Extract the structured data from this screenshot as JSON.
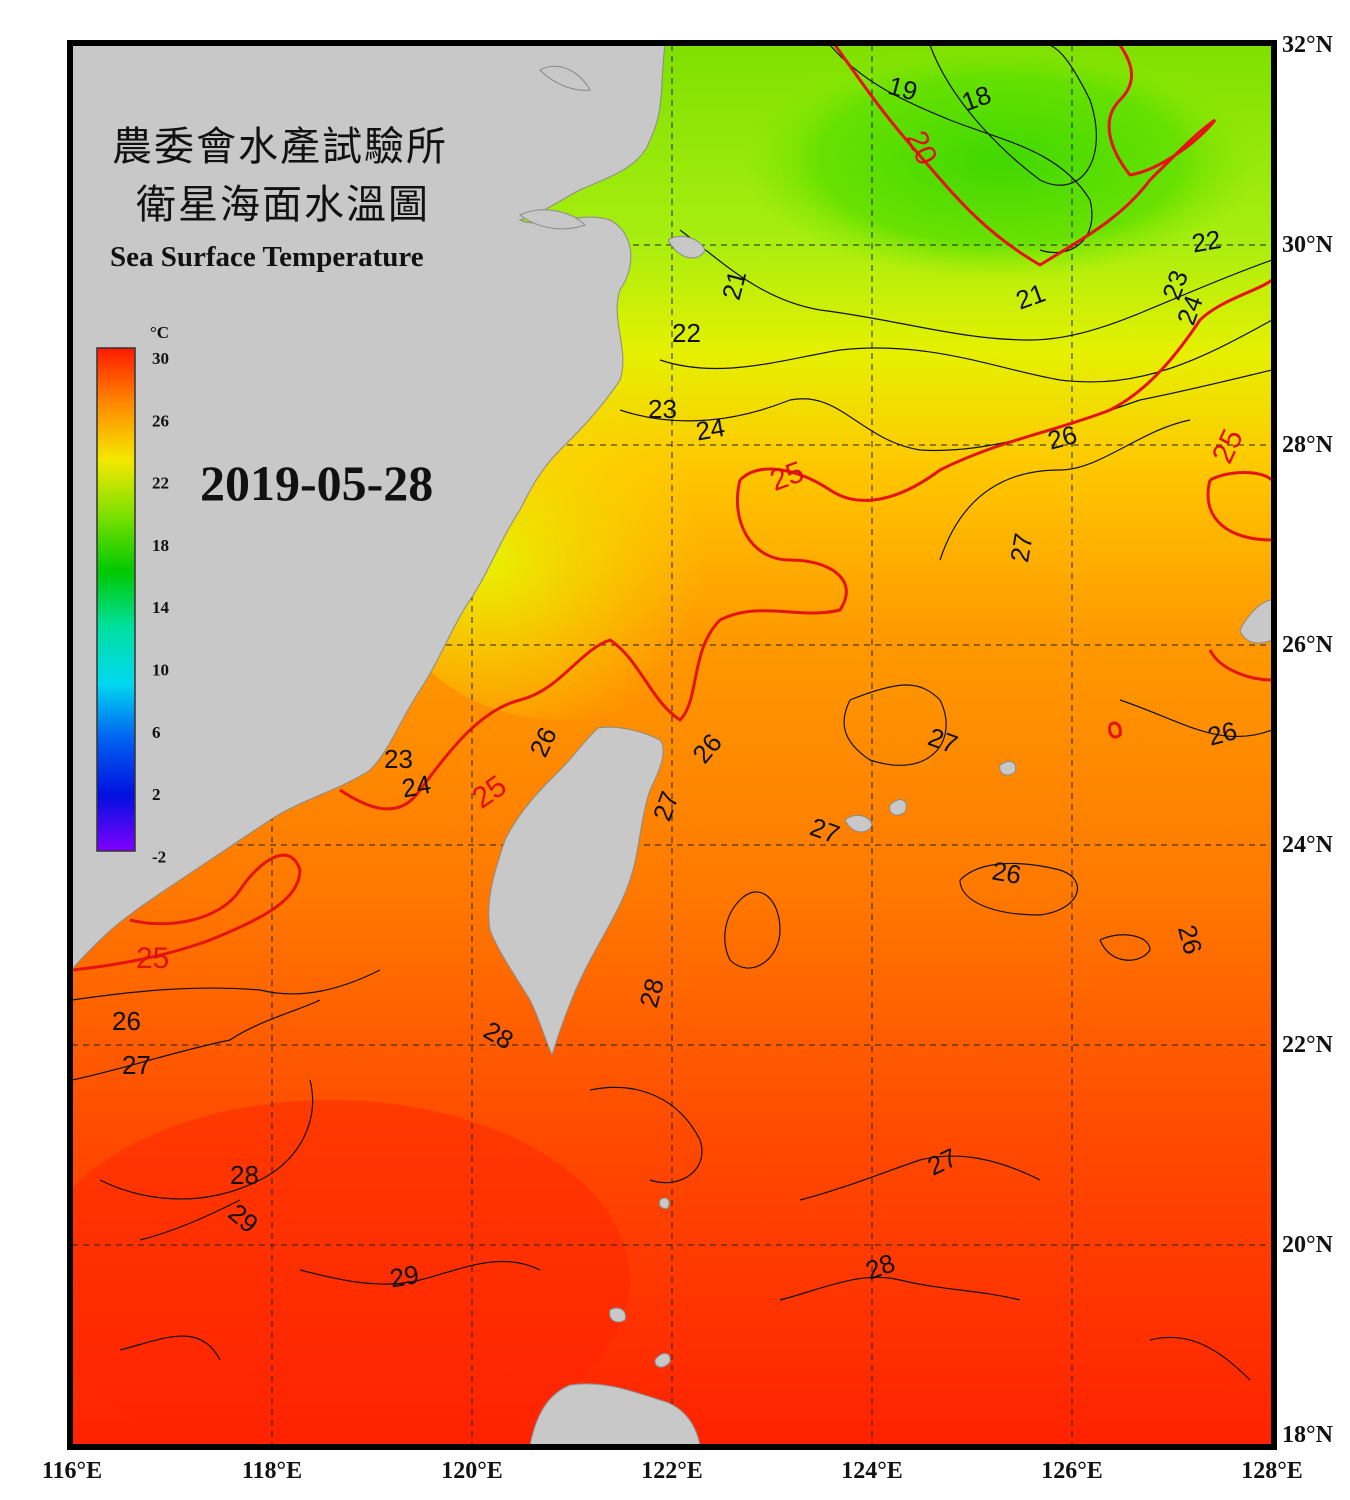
{
  "title": {
    "zh_line1": "農委會水產試驗所",
    "zh_line2": "衛星海面水溫圖",
    "en": "Sea Surface Temperature"
  },
  "date": "2019-05-28",
  "colorbar": {
    "unit": "°C",
    "labels": [
      "30",
      "26",
      "22",
      "18",
      "14",
      "10",
      "6",
      "2",
      "-2"
    ],
    "colors": [
      "#ff1a00",
      "#ff8a00",
      "#f5e800",
      "#7de000",
      "#00c800",
      "#00e0a0",
      "#00d8f0",
      "#0060f0",
      "#0010e0",
      "#8000ff"
    ]
  },
  "axes": {
    "lon_labels": [
      "116°E",
      "118°E",
      "120°E",
      "122°E",
      "124°E",
      "126°E",
      "128°E"
    ],
    "lat_labels": [
      "32°N",
      "30°N",
      "28°N",
      "26°N",
      "24°N",
      "22°N",
      "20°N",
      "18°N"
    ]
  },
  "contour_labels": {
    "black": [
      "19",
      "18",
      "21",
      "22",
      "21",
      "23",
      "24",
      "22",
      "23",
      "24",
      "26",
      "27",
      "26",
      "27",
      "27",
      "26",
      "26",
      "26",
      "27",
      "28",
      "28",
      "26",
      "27",
      "28",
      "29",
      "29",
      "27",
      "28",
      "24",
      "23"
    ],
    "red": [
      "20",
      "25",
      "25",
      "25",
      "25"
    ]
  }
}
